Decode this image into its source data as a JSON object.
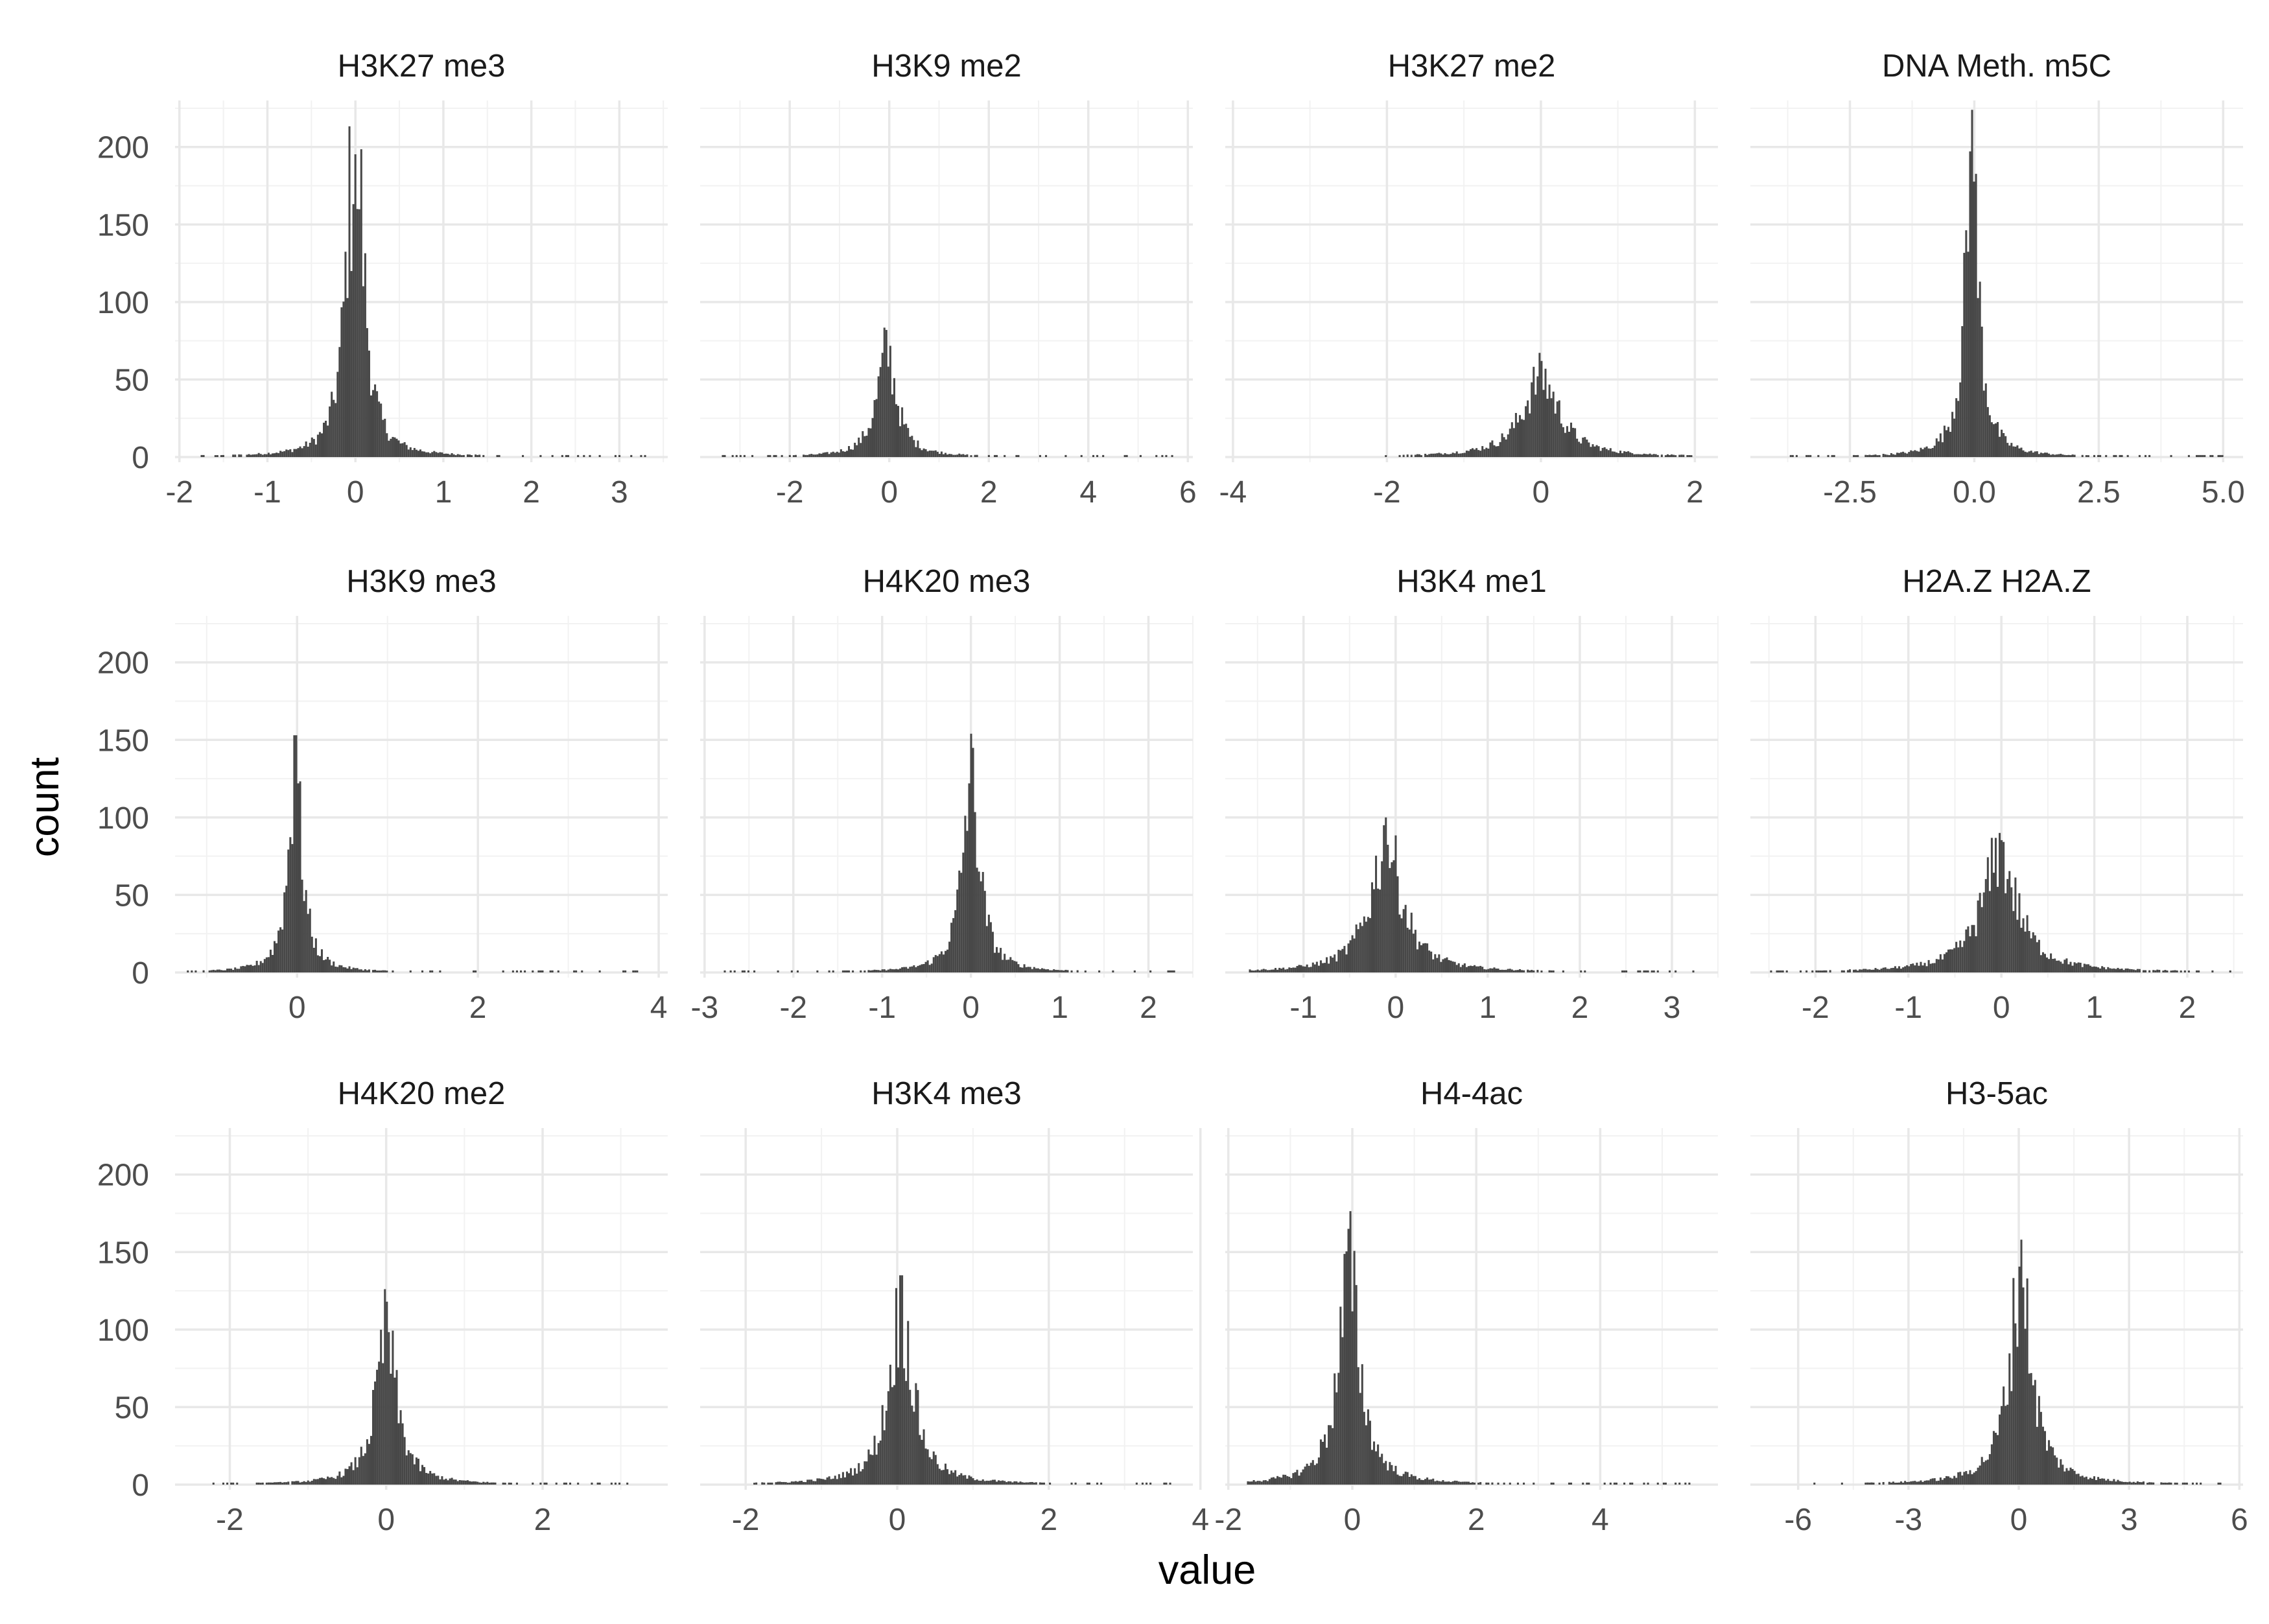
{
  "chart_data": {
    "type": "bar",
    "layout": "facet-grid 3 rows x 4 columns",
    "xlabel": "value",
    "ylabel": "count",
    "ylim": [
      0,
      230
    ],
    "yticks": [
      0,
      50,
      100,
      150,
      200
    ],
    "grid": true,
    "legend": "none",
    "colors": {
      "bars": "#474747",
      "grid_major": "#e8e8e8",
      "grid_minor": "#f2f2f2",
      "background": "#ffffff"
    },
    "panels": [
      {
        "title": "H3K27 me3",
        "xlim": [
          -2.05,
          3.55
        ],
        "xticks": [
          -2,
          -1,
          0,
          1,
          2,
          3
        ],
        "xticklabels": [
          "-2",
          "-1",
          "0",
          "1",
          "2",
          "3"
        ],
        "peaks": [
          [
            -0.05,
            120
          ],
          [
            0.03,
            160
          ]
        ],
        "spread": 0.11,
        "tails": [
          -1.9,
          3.3
        ]
      },
      {
        "title": "H3K9 me2",
        "xlim": [
          -3.8,
          6.1
        ],
        "xticks": [
          -2,
          0,
          2,
          4,
          6
        ],
        "xticklabels": [
          "-2",
          "0",
          "2",
          "4",
          "6"
        ],
        "peaks": [
          [
            -0.05,
            82
          ]
        ],
        "spread": 0.25,
        "tails": [
          -3.5,
          5.8
        ]
      },
      {
        "title": "H3K27 me2",
        "xlim": [
          -4.1,
          2.3
        ],
        "xticks": [
          -4,
          -2,
          0,
          2
        ],
        "xticklabels": [
          "-4",
          "-2",
          "0",
          "2"
        ],
        "peaks": [
          [
            0.0,
            62
          ]
        ],
        "spread": 0.3,
        "tails": [
          -2.2,
          2.1
        ]
      },
      {
        "title": "DNA Meth. m5C",
        "xlim": [
          -4.5,
          5.4
        ],
        "xticks": [
          -2.5,
          0,
          2.5,
          5
        ],
        "xticklabels": [
          "-2.5",
          "0.0",
          "2.5",
          "5.0"
        ],
        "peaks": [
          [
            -0.05,
            224
          ]
        ],
        "spread": 0.18,
        "tails": [
          -4.0,
          5.0
        ]
      },
      {
        "title": "H3K9 me3",
        "xlim": [
          -1.35,
          4.1
        ],
        "xticks": [
          0,
          2,
          4
        ],
        "xticklabels": [
          "0",
          "2",
          "4"
        ],
        "peaks": [
          [
            -0.02,
            153
          ]
        ],
        "spread": 0.1,
        "tails": [
          -1.3,
          3.9
        ]
      },
      {
        "title": "H4K20 me3",
        "xlim": [
          -3.05,
          2.5
        ],
        "xticks": [
          -3,
          -2,
          -1,
          0,
          1,
          2
        ],
        "xticklabels": [
          "-3",
          "-2",
          "-1",
          "0",
          "1",
          "2"
        ],
        "peaks": [
          [
            0.0,
            154
          ]
        ],
        "spread": 0.12,
        "tails": [
          -2.8,
          2.3
        ]
      },
      {
        "title": "H3K4 me1",
        "xlim": [
          -1.85,
          3.5
        ],
        "xticks": [
          -1,
          0,
          1,
          2,
          3
        ],
        "xticklabels": [
          "-1",
          "0",
          "1",
          "2",
          "3"
        ],
        "peaks": [
          [
            -0.1,
            100
          ]
        ],
        "spread": 0.22,
        "tails": [
          -1.6,
          3.3
        ]
      },
      {
        "title": "H2A.Z H2A.Z",
        "xlim": [
          -2.7,
          2.6
        ],
        "xticks": [
          -2,
          -1,
          0,
          1,
          2
        ],
        "xticklabels": [
          "-2",
          "-1",
          "0",
          "1",
          "2"
        ],
        "peaks": [
          [
            -0.02,
            90
          ]
        ],
        "spread": 0.25,
        "tails": [
          -2.5,
          2.5
        ]
      },
      {
        "title": "H4K20 me2",
        "xlim": [
          -2.7,
          3.6
        ],
        "xticks": [
          -2,
          0,
          2
        ],
        "xticklabels": [
          "-2",
          "0",
          "2"
        ],
        "peaks": [
          [
            0.0,
            118
          ]
        ],
        "spread": 0.17,
        "tails": [
          -2.5,
          3.5
        ]
      },
      {
        "title": "H3K4 me3",
        "xlim": [
          -2.6,
          3.9
        ],
        "xticks": [
          -2,
          0,
          2,
          4
        ],
        "xticklabels": [
          "-2",
          "0",
          "2",
          "4"
        ],
        "peaks": [
          [
            0.05,
            135
          ]
        ],
        "spread": 0.2,
        "tails": [
          -2.0,
          3.7
        ]
      },
      {
        "title": "H4-4ac",
        "xlim": [
          -2.05,
          5.9
        ],
        "xticks": [
          -2,
          0,
          2,
          4
        ],
        "xticklabels": [
          "-2",
          "0",
          "2",
          "4"
        ],
        "peaks": [
          [
            -0.05,
            165
          ]
        ],
        "spread": 0.22,
        "tails": [
          -1.7,
          5.5
        ]
      },
      {
        "title": "H3-5ac",
        "xlim": [
          -7.3,
          6.1
        ],
        "xticks": [
          -6,
          -3,
          0,
          3,
          6
        ],
        "xticklabels": [
          "-6",
          "-3",
          "0",
          "3",
          "6"
        ],
        "peaks": [
          [
            0.05,
            158
          ]
        ],
        "spread": 0.4,
        "tails": [
          -6.2,
          5.8
        ]
      }
    ]
  }
}
